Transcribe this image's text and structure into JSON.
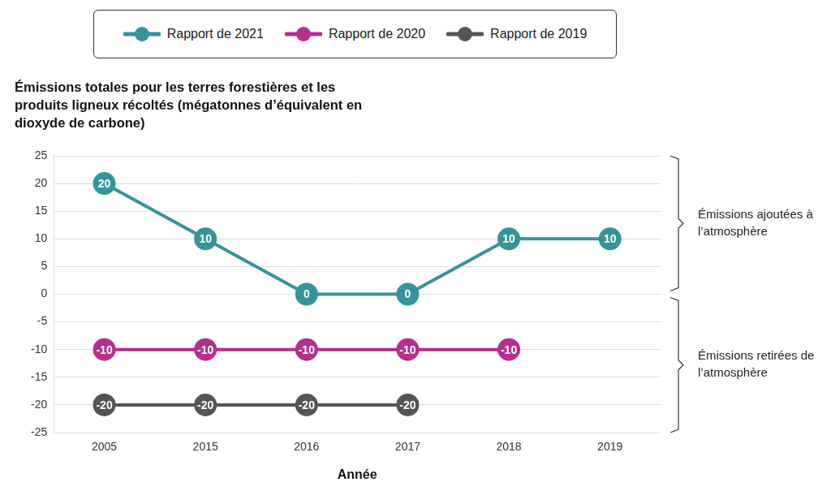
{
  "chart_data": {
    "type": "line",
    "title": "Émissions totales pour les terres forestières et les produits ligneux récoltés (mégatonnes d’équivalent en dioxyde de carbone)",
    "x_label": "Année",
    "categories": [
      "2005",
      "2015",
      "2016",
      "2017",
      "2018",
      "2019"
    ],
    "series": [
      {
        "name": "Rapport de 2021",
        "color": "#34949a",
        "values": [
          20,
          10,
          0,
          0,
          10,
          10
        ]
      },
      {
        "name": "Rapport de 2020",
        "color": "#b52f8d",
        "values": [
          -10,
          -10,
          -10,
          -10,
          -10,
          null
        ]
      },
      {
        "name": "Rapport de 2019",
        "color": "#555555",
        "values": [
          -20,
          -20,
          -20,
          -20,
          null,
          null
        ]
      }
    ],
    "ylim": [
      -25,
      25
    ],
    "yticks": [
      -25,
      -20,
      -15,
      -10,
      -5,
      0,
      5,
      10,
      15,
      20,
      25
    ],
    "grid": true,
    "legend": "top",
    "data_labels": true,
    "marker": "circle",
    "annotations": [
      "Émissions ajoutées à l’atmosphère",
      "Émissions retirées de l’atmosphère"
    ]
  }
}
